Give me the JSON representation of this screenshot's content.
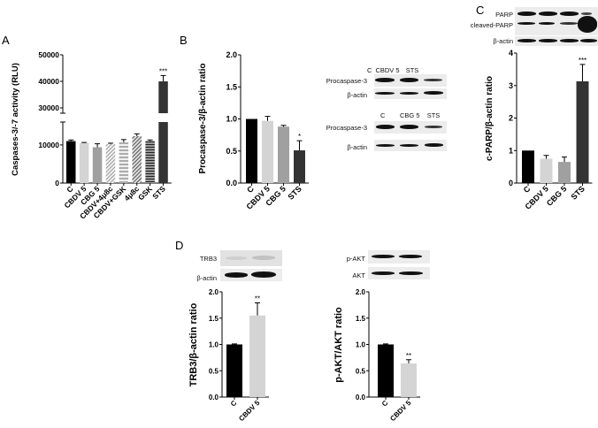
{
  "figure": {
    "panel_labels": {
      "A": "A",
      "B": "B",
      "C": "C",
      "D": "D"
    }
  },
  "blots": {
    "B_top": {
      "lanes": [
        "C",
        "CBDV 5",
        "STS"
      ],
      "rows": [
        "Procaspase-3",
        "β-actin"
      ]
    },
    "B_bottom": {
      "lanes": [
        "C",
        "CBG 5",
        "STS"
      ],
      "rows": [
        "Procaspase-3",
        "β-actin"
      ]
    },
    "C": {
      "rows": [
        "PARP",
        "cleaved-PARP",
        "β-actin"
      ]
    },
    "D_left": {
      "rows": [
        "TRB3",
        "β-actin"
      ]
    },
    "D_right": {
      "rows": [
        "p-AKT",
        "AKT"
      ]
    }
  },
  "chart_data": [
    {
      "panel": "A",
      "type": "bar",
      "title": "",
      "xlabel": "",
      "ylabel": "Caspases-3/-7 activity (RLU)",
      "categories": [
        "C",
        "CBDV 5",
        "CBG 5",
        "CBDV+4μ8c",
        "CBDV+GSK",
        "4μ8c",
        "GSK",
        "STS"
      ],
      "values": [
        11000,
        10500,
        9400,
        10200,
        10700,
        12300,
        11000,
        40000
      ],
      "errors": [
        300,
        150,
        900,
        250,
        700,
        600,
        300,
        2200
      ],
      "significance": [
        "",
        "",
        "",
        "",
        "",
        "",
        "",
        "***"
      ],
      "yticks": [
        0,
        10000,
        30000,
        40000,
        50000
      ],
      "ylim": [
        0,
        50000
      ],
      "axis_break": [
        16000,
        28000
      ],
      "fills": [
        "#000000",
        "#d4d4d4",
        "#a0a0a0",
        "hatch-diag-light",
        "hatch-horiz-light",
        "hatch-diag-dark",
        "hatch-horiz-dark",
        "#333333"
      ]
    },
    {
      "panel": "B",
      "type": "bar",
      "title": "",
      "xlabel": "",
      "ylabel": "Procaspase-3/β-actin ratio",
      "categories": [
        "C",
        "CBDV 5",
        "CBG 5",
        "STS"
      ],
      "values": [
        1.0,
        0.97,
        0.88,
        0.51
      ],
      "errors": [
        0,
        0.07,
        0.02,
        0.15
      ],
      "significance": [
        "",
        "",
        "",
        "*"
      ],
      "yticks": [
        0.0,
        0.5,
        1.0,
        1.5,
        2.0
      ],
      "ylim": [
        0,
        2.0
      ],
      "fills": [
        "#000000",
        "#d4d4d4",
        "#a0a0a0",
        "#333333"
      ]
    },
    {
      "panel": "C",
      "type": "bar",
      "title": "",
      "xlabel": "",
      "ylabel": "c-PARP/β-actin ratio",
      "categories": [
        "C",
        "CBDV 5",
        "CBG 5",
        "STS"
      ],
      "values": [
        1.0,
        0.75,
        0.65,
        3.13
      ],
      "errors": [
        0,
        0.1,
        0.15,
        0.52
      ],
      "significance": [
        "",
        "",
        "",
        "***"
      ],
      "yticks": [
        0,
        1,
        2,
        3,
        4
      ],
      "ylim": [
        0,
        4
      ],
      "fills": [
        "#000000",
        "#d4d4d4",
        "#a0a0a0",
        "#333333"
      ]
    },
    {
      "panel": "D-left",
      "type": "bar",
      "title": "",
      "xlabel": "",
      "ylabel": "TRB3/β-actin ratio",
      "categories": [
        "C",
        "CBDV 5"
      ],
      "values": [
        1.0,
        1.55
      ],
      "errors": [
        0.01,
        0.24
      ],
      "significance": [
        "",
        "**"
      ],
      "yticks": [
        0.0,
        0.5,
        1.0,
        1.5,
        2.0
      ],
      "ylim": [
        0,
        2.0
      ],
      "fills": [
        "#000000",
        "#d4d4d4"
      ]
    },
    {
      "panel": "D-right",
      "type": "bar",
      "title": "",
      "xlabel": "",
      "ylabel": "p-AKT/AKT ratio",
      "categories": [
        "C",
        "CBDV 5"
      ],
      "values": [
        1.0,
        0.64
      ],
      "errors": [
        0.01,
        0.07
      ],
      "significance": [
        "",
        "**"
      ],
      "yticks": [
        0.0,
        0.5,
        1.0,
        1.5,
        2.0
      ],
      "ylim": [
        0,
        2.0
      ],
      "fills": [
        "#000000",
        "#d4d4d4"
      ]
    }
  ]
}
